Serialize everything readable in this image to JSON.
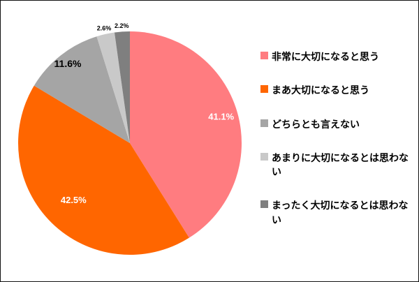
{
  "chart_data": {
    "type": "pie",
    "labels": [
      "非常に大切になると思う",
      "まあ大切になると思う",
      "どちらとも言えない",
      "あまりに大切になるとは思わない",
      "まったく大切になるとは思わない"
    ],
    "values": [
      41.1,
      42.5,
      11.6,
      2.6,
      2.2
    ],
    "value_labels": [
      "41.1%",
      "42.5%",
      "11.6%",
      "2.6%",
      "2.2%"
    ],
    "colors": [
      "#ff7c80",
      "#ff6600",
      "#a5a5a5",
      "#c9c9c9",
      "#7f7f7f"
    ],
    "label_colors": [
      "#ffffff",
      "#ffffff",
      "#000000",
      "#000000",
      "#000000"
    ],
    "label_placement": [
      "inside",
      "inside",
      "edge",
      "outside",
      "outside"
    ],
    "label_radius_factors": [
      0.85,
      0.72,
      0.9,
      1.06,
      1.06
    ],
    "start_angle_deg": 0,
    "direction": "clockwise",
    "legend_position": "right",
    "background_color": "#ffffff",
    "border_color": "#111111"
  }
}
